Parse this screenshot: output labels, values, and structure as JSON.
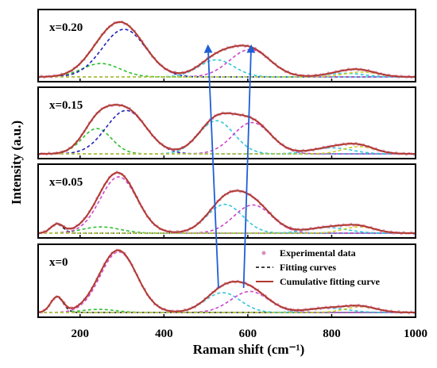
{
  "chart_data": {
    "type": "line",
    "xlabel": "Raman shift (cm⁻¹)",
    "ylabel": "Intensity (a.u.)",
    "xlim": [
      100,
      1000
    ],
    "xticks": [
      200,
      400,
      600,
      800,
      1000
    ],
    "legend": {
      "placement": "bottom-panel-right",
      "entries": [
        "Experimental data",
        "Fitting curves",
        "Cumulative fitting curve"
      ]
    },
    "colors": {
      "experimental": "#d88fbf",
      "cumulative": "#b03a2e",
      "fitting_legend": "#000000",
      "arrows": "#1f5fd6"
    },
    "panels": [
      {
        "label": "x=0.20",
        "fit_components": [
          {
            "center": 145,
            "height": 0.0,
            "width": 18,
            "color": "#333333"
          },
          {
            "center": 250,
            "height": 0.22,
            "width": 45,
            "color": "#2ec02e"
          },
          {
            "center": 305,
            "height": 0.78,
            "width": 52,
            "color": "#2222bb"
          },
          {
            "center": 525,
            "height": 0.28,
            "width": 42,
            "color": "#30c8d8"
          },
          {
            "center": 605,
            "height": 0.45,
            "width": 48,
            "color": "#cc44cc"
          },
          {
            "center": 830,
            "height": 0.06,
            "width": 45,
            "color": "#30c8d8"
          },
          {
            "center": 870,
            "height": 0.08,
            "width": 40,
            "color": "#cccc22"
          }
        ]
      },
      {
        "label": "x=0.15",
        "fit_components": [
          {
            "center": 145,
            "height": 0.0,
            "width": 18,
            "color": "#333333"
          },
          {
            "center": 240,
            "height": 0.42,
            "width": 35,
            "color": "#2ec02e"
          },
          {
            "center": 310,
            "height": 0.72,
            "width": 48,
            "color": "#2222bb"
          },
          {
            "center": 525,
            "height": 0.55,
            "width": 42,
            "color": "#30c8d8"
          },
          {
            "center": 610,
            "height": 0.52,
            "width": 45,
            "color": "#cc44cc"
          },
          {
            "center": 800,
            "height": 0.1,
            "width": 48,
            "color": "#30c8d8"
          },
          {
            "center": 865,
            "height": 0.12,
            "width": 38,
            "color": "#cccc22"
          }
        ]
      },
      {
        "label": "x=0.05",
        "fit_components": [
          {
            "center": 145,
            "height": 0.14,
            "width": 15,
            "color": "#222222"
          },
          {
            "center": 250,
            "height": 0.1,
            "width": 45,
            "color": "#2ec02e"
          },
          {
            "center": 292,
            "height": 0.9,
            "width": 44,
            "color": "#cc44cc"
          },
          {
            "center": 545,
            "height": 0.46,
            "width": 42,
            "color": "#30c8d8"
          },
          {
            "center": 612,
            "height": 0.45,
            "width": 45,
            "color": "#cc44cc"
          },
          {
            "center": 790,
            "height": 0.09,
            "width": 48,
            "color": "#30c8d8"
          },
          {
            "center": 865,
            "height": 0.1,
            "width": 38,
            "color": "#cccc22"
          }
        ]
      },
      {
        "label": "x=0",
        "fit_components": [
          {
            "center": 145,
            "height": 0.25,
            "width": 15,
            "color": "#222222"
          },
          {
            "center": 245,
            "height": 0.05,
            "width": 40,
            "color": "#2ec02e"
          },
          {
            "center": 292,
            "height": 0.98,
            "width": 44,
            "color": "#cc44cc"
          },
          {
            "center": 540,
            "height": 0.32,
            "width": 42,
            "color": "#30c8d8"
          },
          {
            "center": 605,
            "height": 0.34,
            "width": 45,
            "color": "#cc44cc"
          },
          {
            "center": 790,
            "height": 0.07,
            "width": 48,
            "color": "#30c8d8"
          },
          {
            "center": 870,
            "height": 0.09,
            "width": 38,
            "color": "#cccc22"
          }
        ]
      }
    ],
    "arrows": [
      {
        "from": {
          "x": 530,
          "panel": "x=0"
        },
        "to": {
          "x": 505,
          "panel": "x=0.20"
        }
      },
      {
        "from": {
          "x": 590,
          "panel": "x=0"
        },
        "to": {
          "x": 608,
          "panel": "x=0.20"
        }
      }
    ]
  }
}
